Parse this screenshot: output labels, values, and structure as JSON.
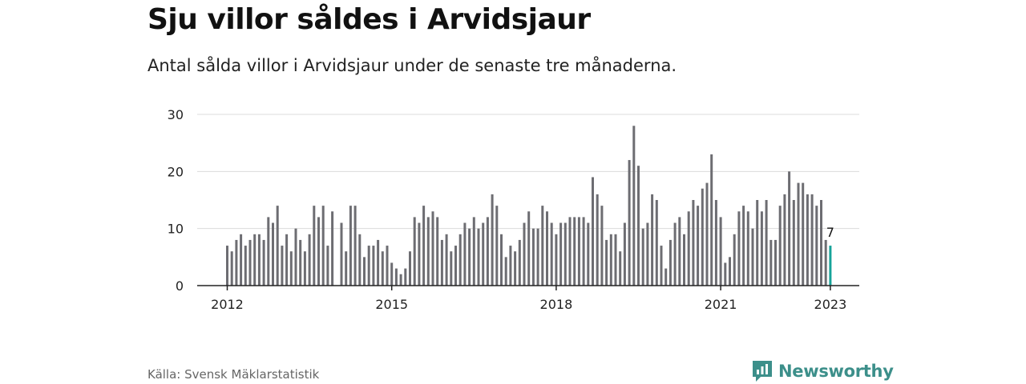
{
  "title": "Sju villor såldes i Arvidsjaur",
  "subtitle": "Antal sålda villor i Arvidsjaur under de senaste tre månaderna.",
  "source": "Källa: Svensk Mäklarstatistik",
  "brand": "Newsworthy",
  "colors": {
    "bar": "#6d6d72",
    "highlight": "#17a39a",
    "grid": "#dcdcdc",
    "axis": "#222222",
    "brand": "#3c8f8a"
  },
  "chart_data": {
    "type": "bar",
    "title": "Sju villor såldes i Arvidsjaur",
    "xlabel": "",
    "ylabel": "",
    "ylim": [
      0,
      30
    ],
    "yticks": [
      0,
      10,
      20,
      30
    ],
    "grid": true,
    "start": "2012-01",
    "xtick_labels": [
      "2012",
      "2015",
      "2018",
      "2021",
      "2023"
    ],
    "highlight_label": "7",
    "values": [
      7,
      6,
      8,
      9,
      7,
      8,
      9,
      9,
      8,
      12,
      11,
      14,
      7,
      9,
      6,
      10,
      8,
      6,
      9,
      14,
      12,
      14,
      7,
      13,
      0,
      11,
      6,
      14,
      14,
      9,
      5,
      7,
      7,
      8,
      6,
      7,
      4,
      3,
      2,
      3,
      6,
      12,
      11,
      14,
      12,
      13,
      12,
      8,
      9,
      6,
      7,
      9,
      11,
      10,
      12,
      10,
      11,
      12,
      16,
      14,
      9,
      5,
      7,
      6,
      8,
      11,
      13,
      10,
      10,
      14,
      13,
      11,
      9,
      11,
      11,
      12,
      12,
      12,
      12,
      11,
      19,
      16,
      14,
      8,
      9,
      9,
      6,
      11,
      22,
      28,
      21,
      10,
      11,
      16,
      15,
      7,
      3,
      8,
      11,
      12,
      9,
      13,
      15,
      14,
      17,
      18,
      23,
      15,
      12,
      4,
      5,
      9,
      13,
      14,
      13,
      10,
      15,
      13,
      15,
      8,
      8,
      14,
      16,
      20,
      15,
      18,
      18,
      16,
      16,
      14,
      15,
      8,
      7
    ]
  }
}
